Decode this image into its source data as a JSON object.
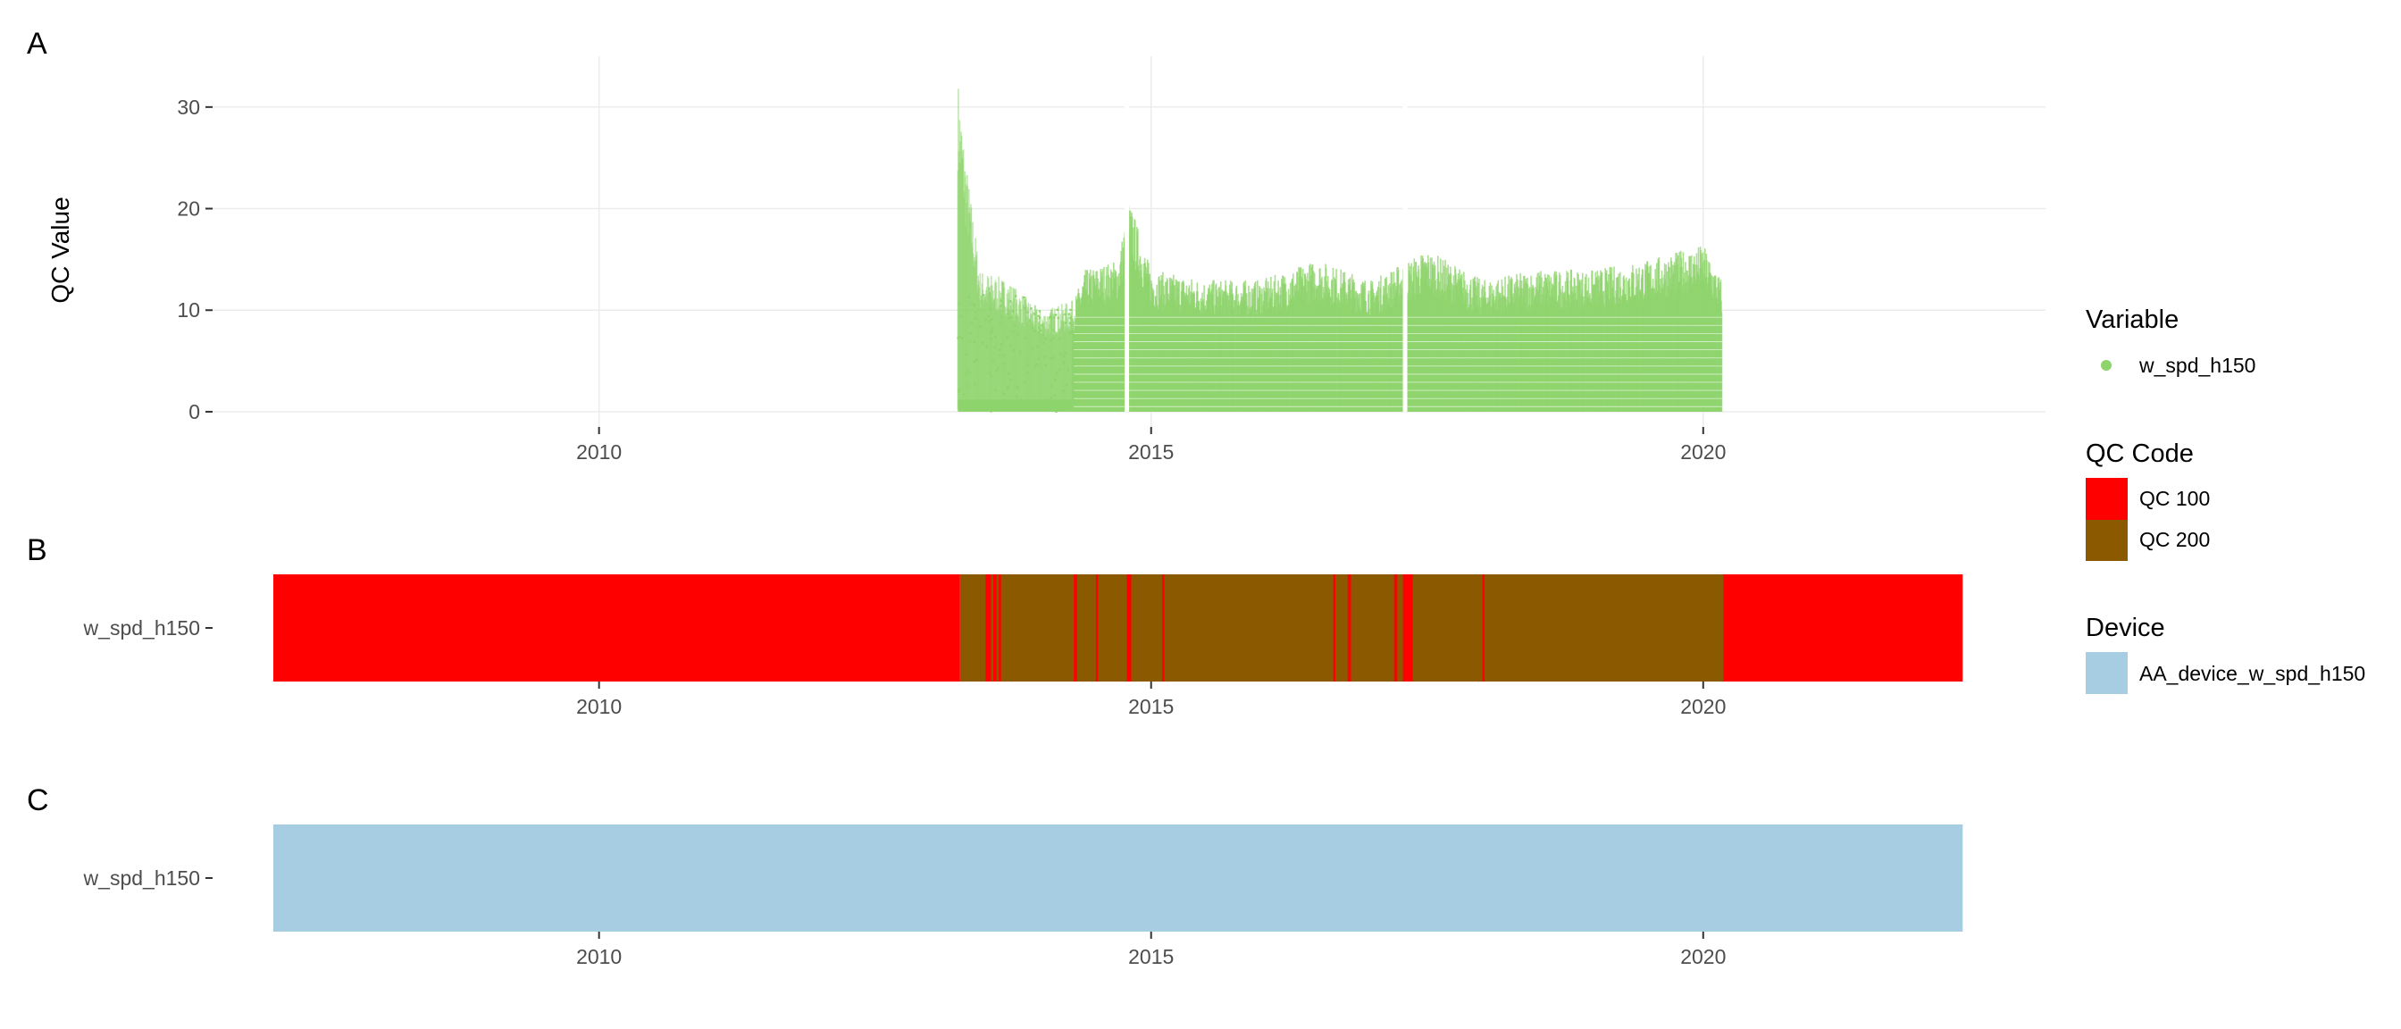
{
  "panels": {
    "a": {
      "tag": "A"
    },
    "b": {
      "tag": "B"
    },
    "c": {
      "tag": "C"
    }
  },
  "legend": {
    "variable": {
      "title": "Variable",
      "items": [
        {
          "label": "w_spd_h150",
          "color": "#8ed46c"
        }
      ]
    },
    "qc_code": {
      "title": "QC Code",
      "items": [
        {
          "label": "QC 100",
          "color": "#ff0000"
        },
        {
          "label": "QC 200",
          "color": "#8b5a00"
        }
      ]
    },
    "device": {
      "title": "Device",
      "items": [
        {
          "label": "AA_device_w_spd_h150",
          "color": "#a6cde2"
        }
      ]
    }
  },
  "chart_data": [
    {
      "panel": "A",
      "type": "scatter",
      "title": "",
      "xlabel": "",
      "ylabel": "QC Value",
      "xlim": [
        2006.5,
        2023.1
      ],
      "ylim": [
        -1.5,
        35
      ],
      "x_ticks": [
        2010,
        2015,
        2020
      ],
      "x_tick_labels": [
        "2010",
        "2015",
        "2020"
      ],
      "y_ticks": [
        0,
        10,
        20,
        30
      ],
      "y_tick_labels": [
        "0",
        "10",
        "20",
        "30"
      ],
      "grid": true,
      "series": [
        {
          "name": "w_spd_h150",
          "color": "#8ed46c",
          "data_extent": {
            "x_start": 2013.25,
            "x_end": 2020.17,
            "y_min": 0,
            "y_max": 33
          },
          "upper_envelope": [
            [
              2013.25,
              33
            ],
            [
              2013.32,
              25
            ],
            [
              2013.45,
              14
            ],
            [
              2013.7,
              13
            ],
            [
              2014.0,
              10
            ],
            [
              2014.3,
              11
            ],
            [
              2014.4,
              14
            ],
            [
              2014.7,
              15
            ],
            [
              2014.8,
              21
            ],
            [
              2015.0,
              14
            ],
            [
              2015.5,
              13
            ],
            [
              2016.0,
              13
            ],
            [
              2016.5,
              15
            ],
            [
              2017.0,
              13
            ],
            [
              2017.5,
              16
            ],
            [
              2018.0,
              13
            ],
            [
              2018.5,
              14
            ],
            [
              2019.0,
              14
            ],
            [
              2019.5,
              15
            ],
            [
              2020.0,
              16.5
            ],
            [
              2020.17,
              13
            ]
          ],
          "gaps": [
            2014.78,
            2017.3
          ]
        }
      ]
    },
    {
      "panel": "B",
      "type": "bar",
      "title": "",
      "xlabel": "",
      "ylabel": "",
      "xlim": [
        2006.5,
        2023.1
      ],
      "x_ticks": [
        2010,
        2015,
        2020
      ],
      "x_tick_labels": [
        "2010",
        "2015",
        "2020"
      ],
      "categories": [
        "w_spd_h150"
      ],
      "legend_title": "QC Code",
      "segments": [
        {
          "start": 2007.05,
          "end": 2013.27,
          "code": "QC 100"
        },
        {
          "start": 2013.27,
          "end": 2020.18,
          "code": "QC 200"
        },
        {
          "start": 2020.18,
          "end": 2022.35,
          "code": "QC 100"
        }
      ],
      "qc100_slivers": [
        [
          2013.5,
          2013.55
        ],
        [
          2013.57,
          2013.6
        ],
        [
          2013.62,
          2013.64
        ],
        [
          2014.3,
          2014.33
        ],
        [
          2014.5,
          2014.52
        ],
        [
          2014.78,
          2014.82
        ],
        [
          2015.1,
          2015.12
        ],
        [
          2016.65,
          2016.67
        ],
        [
          2016.78,
          2016.81
        ],
        [
          2017.2,
          2017.23
        ],
        [
          2017.28,
          2017.37
        ],
        [
          2018.0,
          2018.02
        ]
      ]
    },
    {
      "panel": "C",
      "type": "bar",
      "title": "",
      "xlabel": "",
      "ylabel": "",
      "xlim": [
        2006.5,
        2023.1
      ],
      "x_ticks": [
        2010,
        2015,
        2020
      ],
      "x_tick_labels": [
        "2010",
        "2015",
        "2020"
      ],
      "categories": [
        "w_spd_h150"
      ],
      "legend_title": "Device",
      "segments": [
        {
          "start": 2007.05,
          "end": 2022.35,
          "device": "AA_device_w_spd_h150"
        }
      ]
    }
  ]
}
